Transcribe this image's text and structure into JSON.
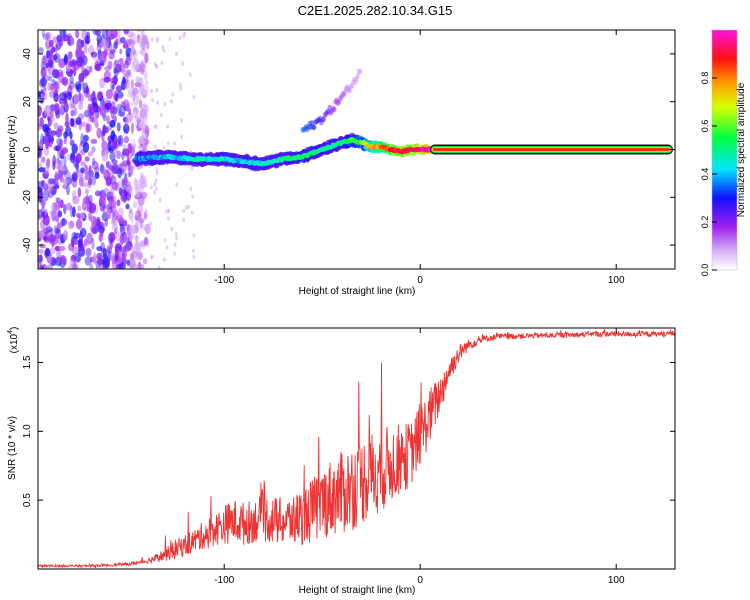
{
  "title": "C2E1.2025.282.10.34.G15",
  "chart_data": [
    {
      "type": "heatmap",
      "name": "spectrogram",
      "xlabel": "Height of straight line (km)",
      "ylabel": "Frequency (Hz)",
      "xlim": [
        -195,
        130
      ],
      "ylim": [
        -50,
        50
      ],
      "x_ticks": [
        -100,
        0,
        100
      ],
      "x_tick_labels": [
        "-100",
        "0",
        "100"
      ],
      "y_ticks": [
        -40,
        -20,
        0,
        20,
        40
      ],
      "y_tick_labels": [
        "-40",
        "-20",
        "0",
        "20",
        "40"
      ],
      "colorbar": {
        "label": "Normalized spectral amplitude",
        "range": [
          0,
          1
        ],
        "ticks": [
          0.0,
          0.2,
          0.4,
          0.6,
          0.8
        ],
        "tick_labels": [
          "0.0",
          "0.2",
          "0.4",
          "0.6",
          "0.8"
        ],
        "colormap": [
          "#ffffff",
          "#a020f0",
          "#0000ff",
          "#00ffff",
          "#00ff00",
          "#ffff00",
          "#ff8000",
          "#ff0000",
          "#ff00ff"
        ]
      },
      "noise_region_x": [
        -195,
        -145
      ],
      "ridge": {
        "x": [
          -145,
          -130,
          -115,
          -100,
          -90,
          -80,
          -70,
          -60,
          -50,
          -40,
          -35,
          -30,
          -25,
          -20,
          -15,
          -10,
          -5,
          0,
          5,
          130
        ],
        "freq": [
          -4,
          -3,
          -4,
          -4,
          -5,
          -6,
          -4,
          -3,
          0,
          3,
          4,
          3,
          1,
          1,
          0,
          -1,
          0,
          0,
          0,
          0
        ],
        "amplitude": [
          0.35,
          0.4,
          0.45,
          0.45,
          0.4,
          0.45,
          0.5,
          0.55,
          0.5,
          0.5,
          0.55,
          0.6,
          0.75,
          0.8,
          0.85,
          0.9,
          0.9,
          0.95,
          1.0,
          1.0
        ]
      },
      "secondary_branch": {
        "x": [
          -60,
          -55,
          -50,
          -45,
          -40,
          -35,
          -30
        ],
        "freq": [
          8,
          10,
          13,
          17,
          22,
          27,
          33
        ],
        "amplitude": [
          0.35,
          0.3,
          0.25,
          0.2,
          0.15,
          0.1,
          0.1
        ]
      }
    },
    {
      "type": "line",
      "name": "snr",
      "color": "#ee3333",
      "xlabel": "Height of straight line (km)",
      "ylabel": "SNR (10 * v/v)",
      "y_scale_label": "(x10",
      "y_scale_exponent": "4",
      "xlim": [
        -195,
        130
      ],
      "ylim": [
        0,
        17500
      ],
      "x_ticks": [
        -100,
        0,
        100
      ],
      "x_tick_labels": [
        "-100",
        "0",
        "100"
      ],
      "y_ticks": [
        5000,
        10000,
        15000
      ],
      "y_tick_labels": [
        "0.5",
        "1.0",
        "1.5"
      ],
      "x": [
        -195,
        -170,
        -150,
        -140,
        -130,
        -125,
        -120,
        -115,
        -110,
        -105,
        -100,
        -95,
        -90,
        -85,
        -80,
        -75,
        -70,
        -65,
        -60,
        -55,
        -50,
        -45,
        -40,
        -35,
        -30,
        -25,
        -20,
        -15,
        -10,
        -5,
        0,
        5,
        10,
        15,
        20,
        25,
        30,
        35,
        40,
        50,
        60,
        70,
        80,
        90,
        100,
        110,
        120,
        130
      ],
      "y": [
        200,
        200,
        300,
        500,
        900,
        1200,
        1500,
        1800,
        2200,
        2500,
        2800,
        3000,
        2800,
        3000,
        3200,
        3000,
        2900,
        3000,
        3200,
        3500,
        4000,
        4400,
        4600,
        5000,
        5400,
        5900,
        6200,
        6800,
        7200,
        7600,
        9000,
        10500,
        12200,
        14200,
        15500,
        16200,
        16500,
        16700,
        16800,
        16850,
        16900,
        16900,
        16950,
        17000,
        17000,
        17000,
        17000,
        17050
      ],
      "noise_amplitude": [
        100,
        100,
        150,
        200,
        600,
        900,
        1000,
        1100,
        1300,
        1500,
        1800,
        2000,
        2000,
        2000,
        2200,
        2200,
        2200,
        2300,
        2600,
        3000,
        3300,
        3600,
        3800,
        4000,
        4000,
        4000,
        3800,
        3600,
        3200,
        3000,
        2800,
        2600,
        1800,
        1200,
        800,
        500,
        400,
        300,
        300,
        250,
        250,
        250,
        250,
        250,
        250,
        250,
        250,
        250
      ]
    }
  ]
}
